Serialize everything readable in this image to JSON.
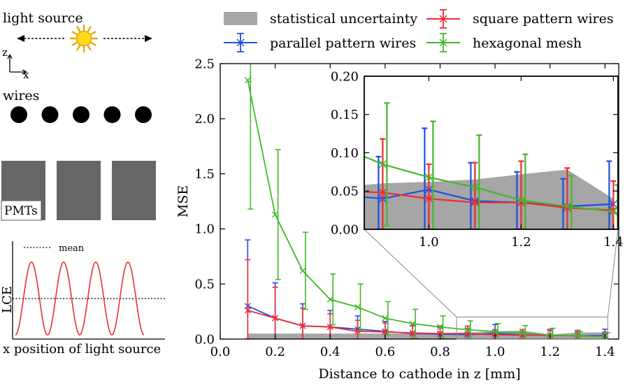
{
  "colors": {
    "blue": "#1f4fe0",
    "red": "#ee2b33",
    "green": "#44b72c",
    "gray": "#a6a6a6",
    "pmt": "#666666",
    "sun": "#ffd91a",
    "sun_edge": "#e6a800"
  },
  "schematic": {
    "light_source": "light source",
    "axis_z": "z",
    "axis_x": "x",
    "wires": "wires",
    "wire_count": 5,
    "pmts": "PMTs",
    "pmt_count": 3,
    "lce_ylabel": "LCE",
    "mean_label": "mean",
    "lce_xlabel": "x position of light source",
    "lce_periods": 4
  },
  "chart_data": [
    {
      "type": "line",
      "id": "main",
      "xlabel": "Distance to cathode in z [mm]",
      "ylabel": "MSE",
      "xlim": [
        0.0,
        1.45
      ],
      "ylim": [
        0.0,
        2.5
      ],
      "xticks": [
        "0.0",
        "0.2",
        "0.4",
        "0.6",
        "0.8",
        "1.0",
        "1.2",
        "1.4"
      ],
      "yticks": [
        "0.0",
        "0.5",
        "1.0",
        "1.5",
        "2.0",
        "2.5"
      ],
      "x": [
        0.1,
        0.2,
        0.3,
        0.4,
        0.5,
        0.6,
        0.7,
        0.8,
        0.9,
        1.0,
        1.1,
        1.2,
        1.3,
        1.4
      ],
      "uncertainty_band": [
        0.05,
        0.05,
        0.05,
        0.05,
        0.05,
        0.05,
        0.05,
        0.055,
        0.06,
        0.07,
        0.078,
        0.04,
        0.06,
        0.06
      ],
      "series": [
        {
          "name": "parallel pattern wires",
          "color_key": "blue",
          "values": [
            0.3,
            0.19,
            0.12,
            0.11,
            0.09,
            0.07,
            0.05,
            0.045,
            0.04,
            0.052,
            0.037,
            0.035,
            0.03,
            0.033
          ],
          "err": [
            0.6,
            0.32,
            0.2,
            0.15,
            0.12,
            0.09,
            0.07,
            0.06,
            0.055,
            0.08,
            0.05,
            0.04,
            0.036,
            0.056
          ]
        },
        {
          "name": "square pattern wires",
          "color_key": "red",
          "values": [
            0.26,
            0.19,
            0.12,
            0.11,
            0.07,
            0.065,
            0.055,
            0.05,
            0.048,
            0.04,
            0.035,
            0.035,
            0.028,
            0.025
          ],
          "err": [
            0.46,
            0.28,
            0.16,
            0.12,
            0.1,
            0.08,
            0.07,
            0.07,
            0.07,
            0.045,
            0.052,
            0.054,
            0.052,
            0.038
          ]
        },
        {
          "name": "hexagonal mesh",
          "color_key": "green",
          "values": [
            2.35,
            1.13,
            0.62,
            0.36,
            0.29,
            0.19,
            0.14,
            0.11,
            0.085,
            0.068,
            0.055,
            0.038,
            0.03,
            0.023
          ],
          "err": [
            1.17,
            0.59,
            0.35,
            0.23,
            0.21,
            0.15,
            0.13,
            0.1,
            0.08,
            0.073,
            0.068,
            0.06,
            0.04,
            0.035
          ]
        }
      ],
      "zoom_box": {
        "x": [
          0.86,
          1.41
        ],
        "y": [
          0.0,
          0.2
        ]
      }
    },
    {
      "type": "line",
      "id": "inset",
      "xlim": [
        0.86,
        1.41
      ],
      "ylim": [
        0.0,
        0.2
      ],
      "xticks": [
        "1.0",
        "1.2",
        "1.4"
      ],
      "yticks": [
        "0.00",
        "0.05",
        "0.10",
        "0.15",
        "0.20"
      ],
      "uncertainty_band": [
        0.058,
        0.06,
        0.062,
        0.065,
        0.072,
        0.078,
        0.04,
        0.06,
        0.06
      ]
    }
  ],
  "legend": {
    "band": "statistical uncertainty",
    "blue": "parallel pattern wires",
    "red": "square pattern wires",
    "green": "hexagonal mesh"
  }
}
